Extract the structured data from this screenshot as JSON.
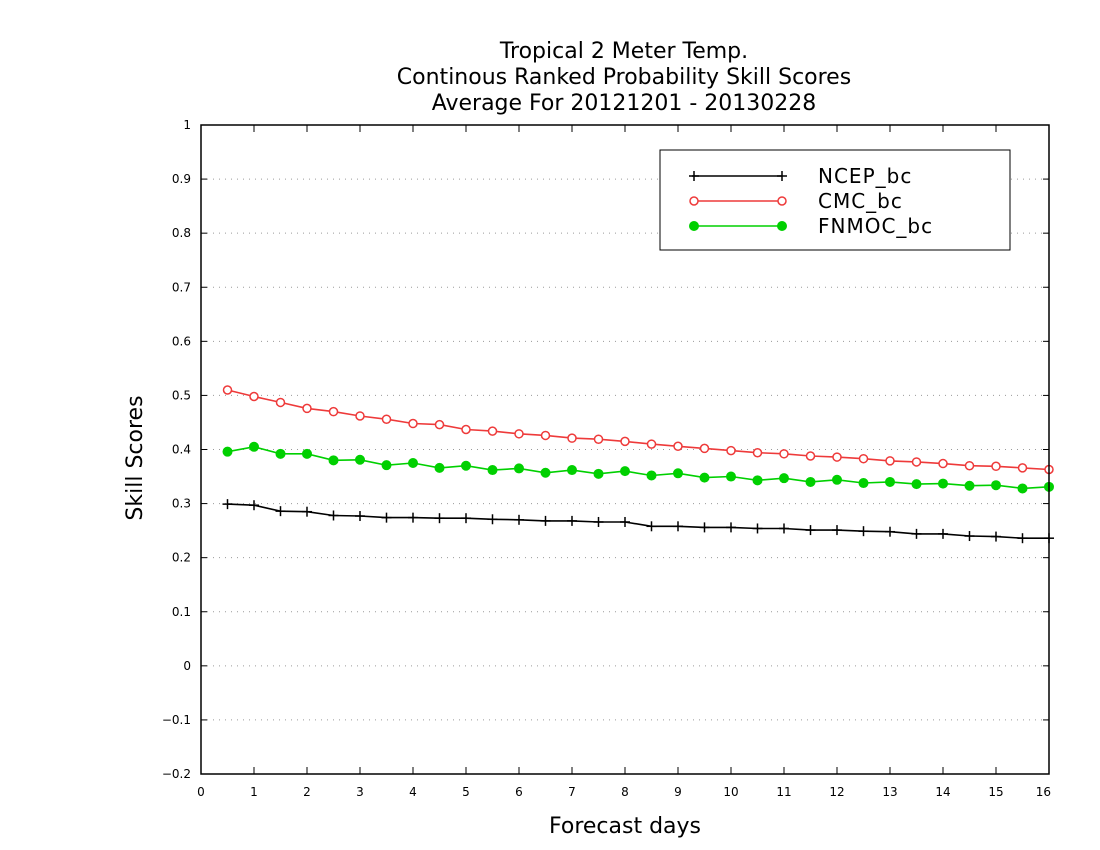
{
  "chart_data": {
    "type": "line",
    "title": [
      "Tropical 2 Meter Temp.",
      "Continous Ranked Probability Skill Scores",
      "Average For 20121201 - 20130228"
    ],
    "xlabel": "Forecast days",
    "ylabel": "Skill Scores",
    "xlim": [
      0,
      16
    ],
    "ylim": [
      -0.2,
      1
    ],
    "xticks": [
      "0",
      "1",
      "2",
      "3",
      "4",
      "5",
      "6",
      "7",
      "8",
      "9",
      "10",
      "11",
      "12",
      "13",
      "14",
      "15",
      "16"
    ],
    "yticks": [
      "−0.2",
      "−0.1",
      "0",
      "0.1",
      "0.2",
      "0.3",
      "0.4",
      "0.5",
      "0.6",
      "0.7",
      "0.8",
      "0.9",
      "1"
    ],
    "grid": "horizontal dotted",
    "legend_position": "top-right",
    "x": [
      0.5,
      1.0,
      1.5,
      2.0,
      2.5,
      3.0,
      3.5,
      4.0,
      4.5,
      5.0,
      5.5,
      6.0,
      6.5,
      7.0,
      7.5,
      8.0,
      8.5,
      9.0,
      9.5,
      10.0,
      10.5,
      11.0,
      11.5,
      12.0,
      12.5,
      13.0,
      13.5,
      14.0,
      14.5,
      15.0,
      15.5,
      16.0
    ],
    "series": [
      {
        "name": "NCEP_bc",
        "color": "#000000",
        "marker": "plus",
        "values": [
          0.299,
          0.297,
          0.286,
          0.285,
          0.278,
          0.277,
          0.274,
          0.274,
          0.273,
          0.273,
          0.271,
          0.27,
          0.268,
          0.268,
          0.266,
          0.266,
          0.258,
          0.258,
          0.256,
          0.256,
          0.254,
          0.254,
          0.251,
          0.251,
          0.249,
          0.248,
          0.244,
          0.244,
          0.24,
          0.239,
          0.236,
          0.236
        ]
      },
      {
        "name": "CMC_bc",
        "color": "#ee3a3a",
        "marker": "open-circle",
        "values": [
          0.51,
          0.498,
          0.487,
          0.476,
          0.47,
          0.462,
          0.456,
          0.448,
          0.446,
          0.437,
          0.434,
          0.429,
          0.426,
          0.421,
          0.419,
          0.415,
          0.41,
          0.406,
          0.402,
          0.398,
          0.394,
          0.392,
          0.388,
          0.386,
          0.383,
          0.379,
          0.377,
          0.374,
          0.37,
          0.369,
          0.366,
          0.363
        ]
      },
      {
        "name": "FNMOC_bc",
        "color": "#00d000",
        "marker": "filled-circle",
        "values": [
          0.396,
          0.405,
          0.392,
          0.392,
          0.38,
          0.381,
          0.371,
          0.375,
          0.366,
          0.37,
          0.362,
          0.365,
          0.357,
          0.362,
          0.355,
          0.36,
          0.352,
          0.356,
          0.348,
          0.35,
          0.343,
          0.347,
          0.34,
          0.344,
          0.338,
          0.34,
          0.336,
          0.337,
          0.333,
          0.334,
          0.328,
          0.331
        ]
      }
    ]
  }
}
